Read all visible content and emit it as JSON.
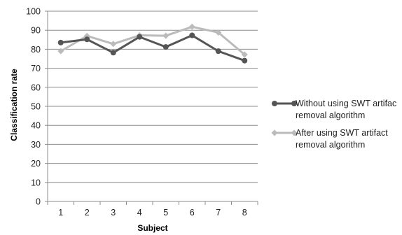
{
  "chart_data": {
    "type": "line",
    "title": "",
    "xlabel": "Subject",
    "ylabel": "Classification rate",
    "categories": [
      "1",
      "2",
      "3",
      "4",
      "5",
      "6",
      "7",
      "8"
    ],
    "ylim": [
      0,
      100
    ],
    "yticks": [
      0,
      10,
      20,
      30,
      40,
      50,
      60,
      70,
      80,
      90,
      100
    ],
    "grid": "horizontal",
    "legend_position": "right",
    "series": [
      {
        "name": "Without using SWT artifac removal algorithm",
        "legend_lines": [
          "Without using SWT artifac",
          "removal algorithm"
        ],
        "values": [
          83.5,
          85.2,
          78.2,
          86.5,
          81.2,
          87.3,
          79.0,
          74.0
        ],
        "color": "#555555",
        "marker": "circle"
      },
      {
        "name": "After using SWT artifact removal algorithm",
        "legend_lines": [
          "After using SWT artifact",
          "removal algorithm"
        ],
        "values": [
          79.0,
          87.0,
          82.8,
          87.3,
          87.1,
          91.8,
          88.8,
          77.2
        ],
        "color": "#bbbbbb",
        "marker": "diamond"
      }
    ]
  }
}
